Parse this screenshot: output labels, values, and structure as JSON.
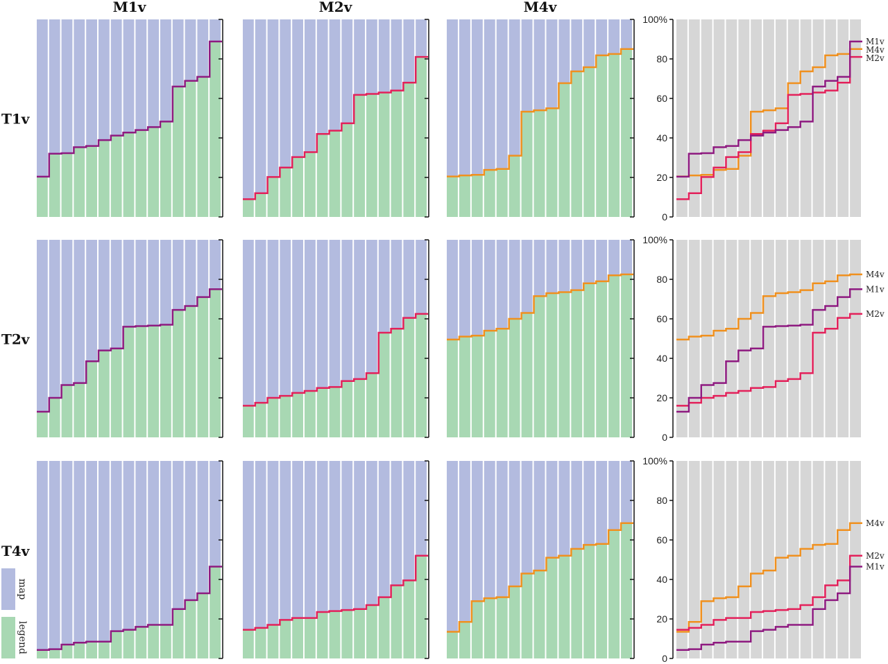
{
  "chart_data": {
    "type": "bar",
    "subtype": "stacked step bar grid with comparison step-line panels",
    "columns": [
      "M1v",
      "M2v",
      "M4v"
    ],
    "ylim": [
      0,
      100
    ],
    "ytick_labels": [
      "0",
      "20",
      "40",
      "60",
      "80",
      "100%"
    ],
    "grid": false,
    "legend": {
      "placement": "bottom-left",
      "entries": [
        {
          "label": "map",
          "color": "#b3bbdf"
        },
        {
          "label": "legend",
          "color": "#a8d8b3"
        }
      ]
    },
    "series_colors": {
      "M1v": "#8e1a80",
      "M2v": "#e3205a",
      "M4v": "#f0901e"
    },
    "comparison_bg": "#d6d6d6",
    "rows": [
      {
        "label": "T1v",
        "series": [
          {
            "name": "M1v",
            "values": [
              20.4,
              32,
              32.3,
              35.3,
              35.9,
              38.9,
              41.2,
              42.7,
              44,
              45.5,
              48.3,
              66,
              68.9,
              70.9,
              88.8
            ]
          },
          {
            "name": "M2v",
            "values": [
              9,
              12,
              20.2,
              25,
              30.3,
              32.8,
              42,
              43.7,
              47.4,
              61.8,
              62.3,
              63,
              64,
              68,
              81
            ]
          },
          {
            "name": "M4v",
            "values": [
              20.5,
              21,
              21.3,
              23.8,
              24.3,
              31,
              53.3,
              54,
              55,
              67.7,
              73.7,
              75.8,
              81.8,
              82.5,
              85
            ]
          }
        ]
      },
      {
        "label": "T2v",
        "series": [
          {
            "name": "M1v",
            "values": [
              13,
              20,
              26.5,
              27.5,
              38.5,
              44,
              45,
              56,
              56.3,
              56.6,
              57,
              64.5,
              66.5,
              71,
              75
            ]
          },
          {
            "name": "M2v",
            "values": [
              16,
              17.5,
              20,
              21,
              22.5,
              23.5,
              25,
              25.5,
              28.5,
              29.5,
              32.5,
              53,
              55,
              60.5,
              62.5
            ]
          },
          {
            "name": "M4v",
            "values": [
              49.5,
              51,
              51.5,
              54,
              55,
              60,
              63,
              71.5,
              73,
              73.5,
              74.5,
              78,
              79,
              82,
              82.5
            ]
          }
        ]
      },
      {
        "label": "T4v",
        "series": [
          {
            "name": "M1v",
            "values": [
              4.3,
              4.7,
              7,
              8,
              8.5,
              8.5,
              13.8,
              14.5,
              16,
              17,
              17,
              25,
              29.5,
              33,
              46.5
            ]
          },
          {
            "name": "M2v",
            "values": [
              14.5,
              15.5,
              17,
              19.5,
              20.5,
              20.5,
              23.5,
              24,
              24.5,
              25,
              27,
              31,
              37,
              39.5,
              52
            ]
          },
          {
            "name": "M4v",
            "values": [
              13.5,
              18.5,
              29,
              30.5,
              31,
              36.5,
              43,
              44.5,
              51,
              52,
              55.5,
              57.5,
              58,
              65,
              68.5
            ]
          }
        ]
      }
    ]
  }
}
